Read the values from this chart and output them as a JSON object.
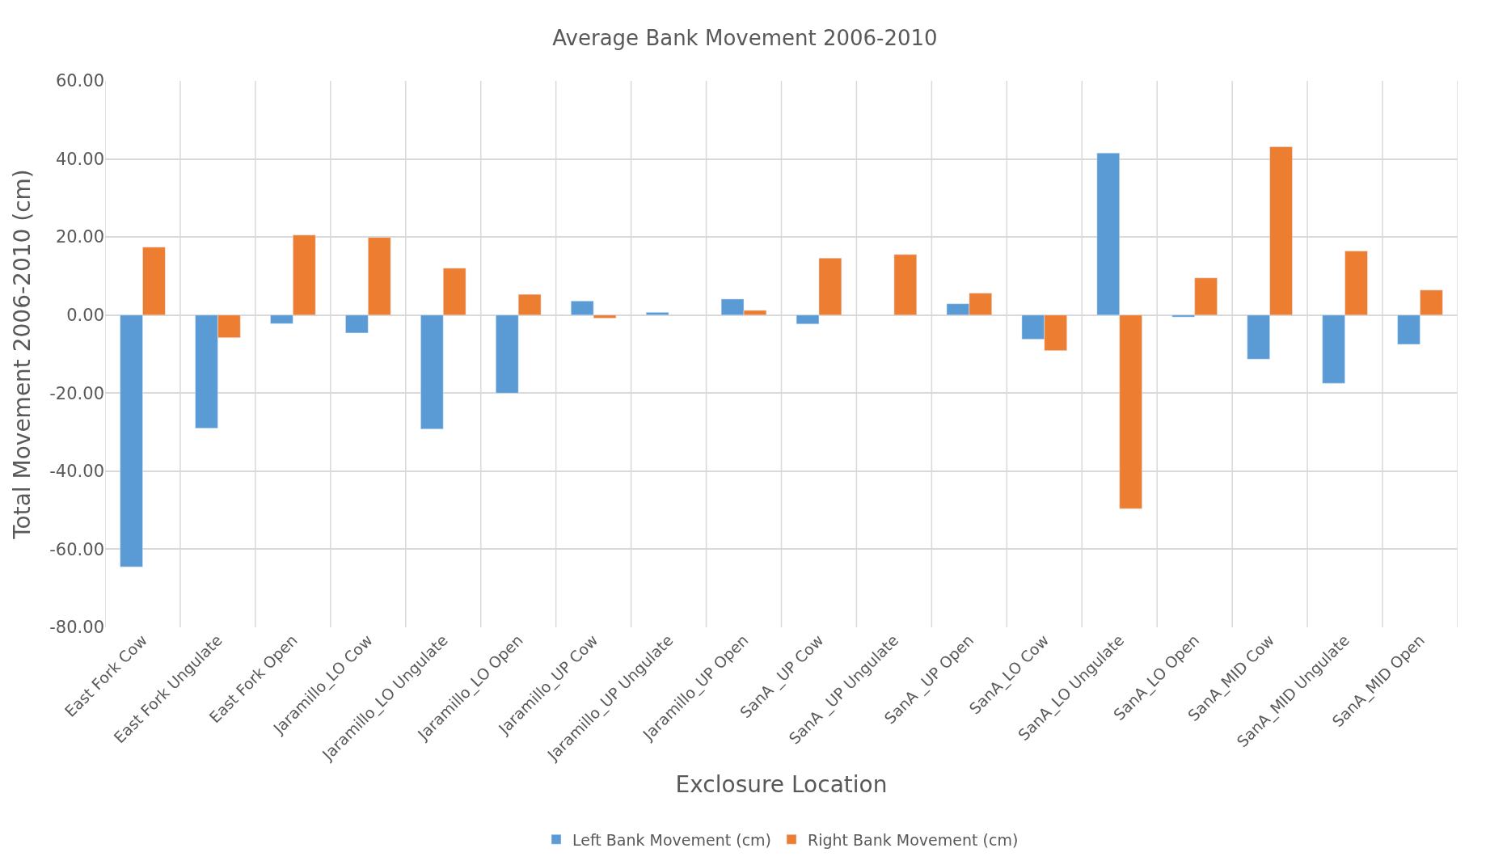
{
  "chart_data": {
    "type": "bar",
    "title": "Average Bank Movement 2006-2010",
    "xlabel": "Exclosure Location",
    "ylabel": "Total Movement 2006-2010 (cm)",
    "categories": [
      "East Fork Cow",
      "East Fork Ungulate",
      "East Fork Open",
      "Jaramillo_LO Cow",
      "Jaramillo_LO Ungulate",
      "Jaramillo_LO Open",
      "Jaramillo_UP Cow",
      "Jaramillo_UP Ungulate",
      "Jaramillo_UP Open",
      "SanA _UP Cow",
      "SanA _UP Ungulate",
      "SanA _UP Open",
      "SanA_LO Cow",
      "SanA_LO Ungulate",
      "SanA_LO Open",
      "SanA_MID Cow",
      "SanA_MID Ungulate",
      "SanA_MID Open"
    ],
    "series": [
      {
        "name": "Left Bank Movement (cm)",
        "color": "#5b9bd5",
        "values": [
          -64.5,
          -29.0,
          -2.2,
          -4.6,
          -29.2,
          -20.0,
          3.6,
          0.7,
          4.1,
          -2.3,
          null,
          2.9,
          -6.2,
          41.5,
          -0.5,
          -11.3,
          -17.5,
          -7.5
        ]
      },
      {
        "name": "Right Bank Movement (cm)",
        "color": "#ed7d31",
        "values": [
          17.4,
          -5.8,
          20.5,
          19.9,
          12.0,
          5.3,
          -0.8,
          null,
          1.2,
          14.6,
          15.5,
          5.6,
          -9.1,
          -49.6,
          9.5,
          43.1,
          16.4,
          6.4
        ]
      }
    ],
    "ylim": [
      -80,
      60
    ],
    "yticks": [
      {
        "value": -80,
        "label": "-80.00"
      },
      {
        "value": -60,
        "label": "-60.00"
      },
      {
        "value": -40,
        "label": "-40.00"
      },
      {
        "value": -20,
        "label": "-20.00"
      },
      {
        "value": 0,
        "label": "0.00"
      },
      {
        "value": 20,
        "label": "20.00"
      },
      {
        "value": 40,
        "label": "40.00"
      },
      {
        "value": 60,
        "label": "60.00"
      }
    ],
    "grid": true,
    "legend": "bottom"
  }
}
